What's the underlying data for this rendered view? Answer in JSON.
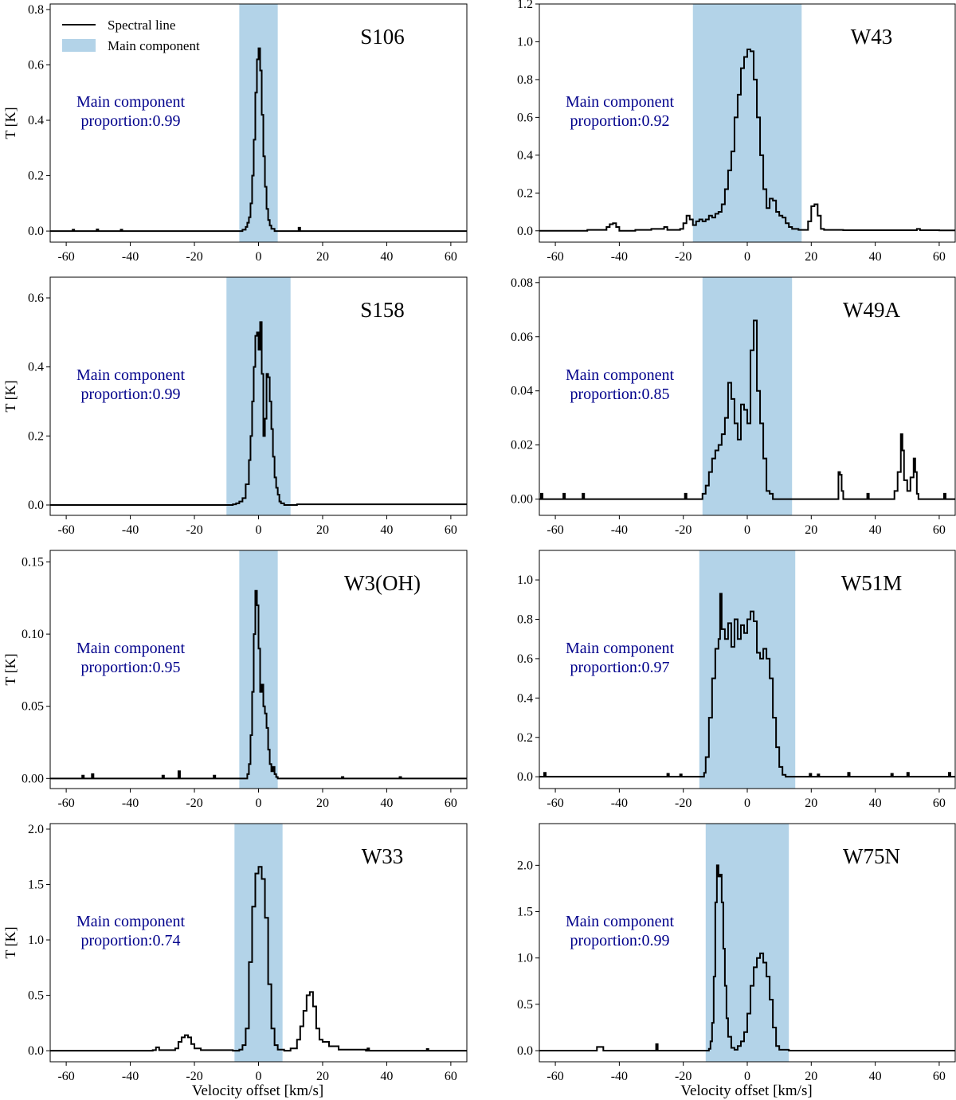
{
  "legend": {
    "line_label": "Spectral line",
    "band_label": "Main component",
    "placement": "upper-left of first panel"
  },
  "colors": {
    "line": "#000000",
    "band": "#b3d3e8",
    "annotation": "#00008b",
    "frame": "#000000"
  },
  "shared": {
    "xlabel": "Velocity offset [km/s]",
    "ylabel": "T [K]",
    "xlim": [
      -65,
      65
    ],
    "xticks": [
      -60,
      -40,
      -20,
      0,
      20,
      40,
      60
    ],
    "xtick_labels": [
      "-60",
      "-40",
      "-20",
      "0",
      "20",
      "40",
      "60"
    ]
  },
  "chart_data": [
    {
      "type": "line",
      "title": "S106",
      "annotation": [
        "Main component",
        "proportion:0.99"
      ],
      "ylabel": "T [K]",
      "ylim": [
        -0.04,
        0.82
      ],
      "yticks": [
        0.0,
        0.2,
        0.4,
        0.6,
        0.8
      ],
      "ytick_labels": [
        "0.0",
        "0.2",
        "0.4",
        "0.6",
        "0.8"
      ],
      "xlabel": "",
      "main_range": [
        -6,
        6
      ],
      "series": [
        {
          "name": "Spectral line",
          "x": [
            -65,
            -58.5,
            -58,
            -57.5,
            -51,
            -50.5,
            -50,
            -43.5,
            -43,
            -42.5,
            -6,
            -5,
            -4,
            -3.5,
            -3,
            -2.5,
            -2,
            -1.5,
            -1,
            -0.5,
            0,
            0.5,
            1,
            1.5,
            2,
            2.5,
            3,
            3.5,
            4,
            5,
            12,
            12.5,
            13,
            20,
            65
          ],
          "y": [
            0,
            0,
            0.005,
            0,
            0,
            0.006,
            0,
            0,
            0.005,
            0,
            0,
            0.005,
            0.015,
            0.03,
            0.05,
            0.1,
            0.2,
            0.33,
            0.5,
            0.62,
            0.66,
            0.58,
            0.42,
            0.27,
            0.16,
            0.08,
            0.04,
            0.02,
            0.008,
            0,
            0,
            0.012,
            0,
            0,
            0
          ]
        }
      ]
    },
    {
      "type": "line",
      "title": "W43",
      "annotation": [
        "Main component",
        "proportion:0.92"
      ],
      "ylabel": "",
      "ylim": [
        -0.06,
        1.2
      ],
      "yticks": [
        0.0,
        0.2,
        0.4,
        0.6,
        0.8,
        1.0,
        1.2
      ],
      "ytick_labels": [
        "0.0",
        "0.2",
        "0.4",
        "0.6",
        "0.8",
        "1.0",
        "1.2"
      ],
      "xlabel": "",
      "main_range": [
        -17,
        17
      ],
      "series": [
        {
          "name": "Spectral line",
          "x": [
            -65,
            -50,
            -45,
            -44,
            -43,
            -42,
            -41,
            -40,
            -35,
            -30,
            -26,
            -25,
            -21,
            -20,
            -19,
            -18,
            -17,
            -16,
            -15,
            -14,
            -13,
            -12,
            -11,
            -10,
            -9,
            -8,
            -7,
            -6,
            -5,
            -4,
            -3,
            -2,
            -1,
            0,
            1,
            2,
            3,
            4,
            5,
            6,
            7,
            8,
            9,
            10,
            11,
            12,
            13,
            14,
            16,
            19,
            20,
            21,
            22,
            23,
            24,
            30,
            40,
            50,
            53,
            54,
            60,
            65
          ],
          "y": [
            0,
            0.005,
            0.005,
            0.02,
            0.035,
            0.04,
            0.02,
            0,
            0.005,
            0.01,
            0.02,
            0.005,
            0.01,
            0.04,
            0.08,
            0.06,
            0.03,
            0.05,
            0.06,
            0.05,
            0.06,
            0.08,
            0.07,
            0.09,
            0.1,
            0.14,
            0.22,
            0.32,
            0.42,
            0.6,
            0.72,
            0.86,
            0.92,
            0.96,
            0.95,
            0.8,
            0.6,
            0.4,
            0.22,
            0.12,
            0.17,
            0.16,
            0.1,
            0.08,
            0.07,
            0.04,
            0.02,
            0.01,
            0.005,
            0.05,
            0.13,
            0.14,
            0.08,
            0.01,
            0.005,
            0.003,
            0.003,
            0.003,
            0.01,
            0.003,
            0.002,
            0.002
          ]
        }
      ]
    },
    {
      "type": "line",
      "title": "S158",
      "annotation": [
        "Main component",
        "proportion:0.99"
      ],
      "ylabel": "T [K]",
      "ylim": [
        -0.03,
        0.66
      ],
      "yticks": [
        0.0,
        0.2,
        0.4,
        0.6
      ],
      "ytick_labels": [
        "0.0",
        "0.2",
        "0.4",
        "0.6"
      ],
      "xlabel": "",
      "main_range": [
        -10,
        10
      ],
      "series": [
        {
          "name": "Spectral line",
          "x": [
            -65,
            -9,
            -8,
            -7,
            -6,
            -5,
            -4,
            -3,
            -2.5,
            -2,
            -1.5,
            -1,
            -0.5,
            0,
            0.5,
            1,
            1.5,
            2,
            2.5,
            3,
            3.5,
            4,
            4.5,
            5,
            5.5,
            6,
            6.5,
            7,
            8,
            12,
            65
          ],
          "y": [
            0,
            0,
            0.002,
            0.005,
            0.01,
            0.02,
            0.06,
            0.13,
            0.2,
            0.3,
            0.4,
            0.49,
            0.5,
            0.45,
            0.53,
            0.38,
            0.2,
            0.25,
            0.38,
            0.37,
            0.3,
            0.22,
            0.14,
            0.08,
            0.05,
            0.03,
            0.01,
            0.005,
            0,
            0.002,
            0
          ]
        }
      ]
    },
    {
      "type": "line",
      "title": "W49A",
      "annotation": [
        "Main component",
        "proportion:0.85"
      ],
      "ylabel": "",
      "ylim": [
        -0.006,
        0.082
      ],
      "yticks": [
        0.0,
        0.02,
        0.04,
        0.06,
        0.08
      ],
      "ytick_labels": [
        "0.00",
        "0.02",
        "0.04",
        "0.06",
        "0.08"
      ],
      "xlabel": "",
      "main_range": [
        -14,
        14
      ],
      "series": [
        {
          "name": "Spectral line",
          "x": [
            -65,
            -64.5,
            -64,
            -58,
            -57.5,
            -57,
            -52,
            -51.5,
            -51,
            -20,
            -19.5,
            -19,
            -14,
            -13,
            -12,
            -11,
            -10,
            -9,
            -8,
            -7,
            -6,
            -5,
            -4,
            -3,
            -2,
            -1,
            0,
            1,
            2,
            3,
            4,
            5,
            6,
            7,
            8,
            9,
            28,
            28.5,
            29,
            29.5,
            30,
            37,
            37.5,
            38,
            45,
            46,
            47,
            48,
            48.5,
            49,
            50,
            51,
            52,
            52.5,
            53,
            53.5,
            54,
            61,
            61.5,
            62,
            65
          ],
          "y": [
            0,
            0.002,
            0,
            0,
            0.002,
            0,
            0,
            0.002,
            0,
            0,
            0.002,
            0,
            0.002,
            0.005,
            0.01,
            0.015,
            0.018,
            0.02,
            0.024,
            0.03,
            0.043,
            0.037,
            0.028,
            0.022,
            0.035,
            0.033,
            0.028,
            0.055,
            0.066,
            0.04,
            0.028,
            0.015,
            0.003,
            0.002,
            0,
            0,
            0,
            0.01,
            0.009,
            0.003,
            0,
            0,
            0.002,
            0,
            0,
            0.003,
            0.01,
            0.024,
            0.018,
            0.007,
            0.003,
            0.008,
            0.015,
            0.01,
            0.002,
            0,
            0,
            0,
            0.002,
            0,
            0
          ]
        }
      ]
    },
    {
      "type": "line",
      "title": "W3(OH)",
      "annotation": [
        "Main component",
        "proportion:0.95"
      ],
      "ylabel": "T [K]",
      "ylim": [
        -0.007,
        0.158
      ],
      "yticks": [
        0.0,
        0.05,
        0.1,
        0.15
      ],
      "ytick_labels": [
        "0.00",
        "0.05",
        "0.10",
        "0.15"
      ],
      "xlabel": "",
      "main_range": [
        -6,
        6
      ],
      "series": [
        {
          "name": "Spectral line",
          "x": [
            -65,
            -55.5,
            -55,
            -54.5,
            -52.5,
            -52,
            -51.5,
            -30.5,
            -30,
            -29.5,
            -25.5,
            -25,
            -24.5,
            -14.5,
            -14,
            -13.5,
            -4,
            -3.5,
            -3,
            -2.5,
            -2,
            -1.5,
            -1,
            -0.5,
            0,
            0.5,
            1,
            1.5,
            2,
            2.5,
            3,
            3.5,
            4,
            4.5,
            5,
            5.5,
            6,
            25.5,
            26,
            26.5,
            43.5,
            44,
            44.5,
            65
          ],
          "y": [
            0,
            0,
            0.002,
            0,
            0,
            0.003,
            0,
            0,
            0.002,
            0,
            0,
            0.005,
            0,
            0,
            0.002,
            0,
            0,
            0.003,
            0.01,
            0.03,
            0.06,
            0.1,
            0.13,
            0.12,
            0.09,
            0.06,
            0.065,
            0.05,
            0.045,
            0.035,
            0.02,
            0.01,
            0.005,
            0.008,
            0.003,
            0.001,
            0,
            0,
            0.001,
            0,
            0,
            0.001,
            0,
            0
          ]
        }
      ]
    },
    {
      "type": "line",
      "title": "W51M",
      "annotation": [
        "Main component",
        "proportion:0.97"
      ],
      "ylabel": "",
      "ylim": [
        -0.06,
        1.15
      ],
      "yticks": [
        0.0,
        0.2,
        0.4,
        0.6,
        0.8,
        1.0
      ],
      "ytick_labels": [
        "0.0",
        "0.2",
        "0.4",
        "0.6",
        "0.8",
        "1.0"
      ],
      "xlabel": "",
      "main_range": [
        -15,
        15
      ],
      "series": [
        {
          "name": "Spectral line",
          "x": [
            -65,
            -64,
            -63.5,
            -63,
            -25.5,
            -25,
            -24.5,
            -21.5,
            -21,
            -20.5,
            -14,
            -13.5,
            -13,
            -12,
            -11,
            -10,
            -9,
            -8.5,
            -8,
            -7,
            -6,
            -5,
            -4,
            -3,
            -2,
            -1,
            0,
            1,
            2,
            3,
            4,
            5,
            6,
            7,
            8,
            9,
            10,
            11,
            12,
            19,
            19.5,
            20,
            21.5,
            22,
            22.5,
            31,
            31.5,
            32,
            44.5,
            45,
            45.5,
            49.5,
            50,
            50.5,
            62.5,
            63,
            63.5,
            65
          ],
          "y": [
            0,
            0,
            0.02,
            0,
            0,
            0.015,
            0,
            0,
            0.012,
            0,
            0,
            0.02,
            0.1,
            0.3,
            0.5,
            0.65,
            0.7,
            0.93,
            0.75,
            0.7,
            0.78,
            0.66,
            0.8,
            0.7,
            0.77,
            0.73,
            0.8,
            0.84,
            0.79,
            0.63,
            0.6,
            0.65,
            0.6,
            0.5,
            0.3,
            0.15,
            0.05,
            0.01,
            0,
            0,
            0.015,
            0,
            0,
            0.012,
            0,
            0,
            0.02,
            0,
            0,
            0.015,
            0,
            0,
            0.02,
            0,
            0,
            0.02,
            0,
            0
          ]
        }
      ]
    },
    {
      "type": "line",
      "title": "W33",
      "annotation": [
        "Main component",
        "proportion:0.74"
      ],
      "ylabel": "T [K]",
      "ylim": [
        -0.1,
        2.05
      ],
      "yticks": [
        0.0,
        0.5,
        1.0,
        1.5,
        2.0
      ],
      "ytick_labels": [
        "0.0",
        "0.5",
        "1.0",
        "1.5",
        "2.0"
      ],
      "xlabel": "Velocity offset [km/s]",
      "main_range": [
        -7.5,
        7.5
      ],
      "series": [
        {
          "name": "Spectral line",
          "x": [
            -65,
            -33,
            -32,
            -31,
            -26,
            -25,
            -24,
            -23,
            -22,
            -21,
            -20,
            -18,
            -8,
            -6,
            -5,
            -4,
            -3,
            -2,
            -1,
            0,
            1,
            2,
            3,
            4,
            5,
            6,
            8,
            10,
            12,
            13,
            14,
            15,
            16,
            17,
            18,
            19,
            20,
            22,
            25,
            33.5,
            34,
            34.5,
            52,
            52.5,
            53,
            65
          ],
          "y": [
            0,
            0.005,
            0.03,
            0.005,
            0.02,
            0.08,
            0.12,
            0.14,
            0.12,
            0.06,
            0.02,
            0.005,
            0,
            0.01,
            0.05,
            0.2,
            0.8,
            1.3,
            1.6,
            1.66,
            1.55,
            1.2,
            0.6,
            0.2,
            0.05,
            0.01,
            0,
            0.02,
            0.1,
            0.22,
            0.36,
            0.5,
            0.53,
            0.4,
            0.2,
            0.1,
            0.08,
            0.04,
            0.01,
            0,
            0.02,
            0,
            0,
            0.015,
            0,
            0
          ]
        }
      ]
    },
    {
      "type": "line",
      "title": "W75N",
      "annotation": [
        "Main component",
        "proportion:0.99"
      ],
      "ylabel": "",
      "ylim": [
        -0.12,
        2.45
      ],
      "yticks": [
        0.0,
        0.5,
        1.0,
        1.5,
        2.0
      ],
      "ytick_labels": [
        "0.0",
        "0.5",
        "1.0",
        "1.5",
        "2.0"
      ],
      "xlabel": "Velocity offset [km/s]",
      "main_range": [
        -13,
        13
      ],
      "series": [
        {
          "name": "Spectral line",
          "x": [
            -65,
            -48,
            -47,
            -46,
            -45,
            -29,
            -28.5,
            -28,
            -13,
            -12,
            -11.5,
            -11,
            -10.5,
            -10,
            -9.5,
            -9,
            -8.5,
            -8,
            -7.5,
            -7,
            -6.5,
            -6,
            -5,
            -4,
            -3,
            -2,
            -1,
            0,
            1,
            2,
            3,
            4,
            5,
            6,
            7,
            8,
            9,
            10,
            13,
            65
          ],
          "y": [
            0,
            0,
            0.04,
            0.04,
            0,
            0,
            0.07,
            0,
            0,
            0.02,
            0.1,
            0.3,
            0.8,
            1.6,
            2.0,
            1.88,
            1.9,
            1.6,
            1.1,
            0.7,
            0.35,
            0.15,
            0.03,
            0.01,
            0.05,
            0.1,
            0.2,
            0.4,
            0.7,
            0.9,
            1.0,
            1.05,
            0.95,
            0.8,
            0.55,
            0.25,
            0.05,
            0.01,
            0,
            0
          ]
        }
      ]
    }
  ]
}
